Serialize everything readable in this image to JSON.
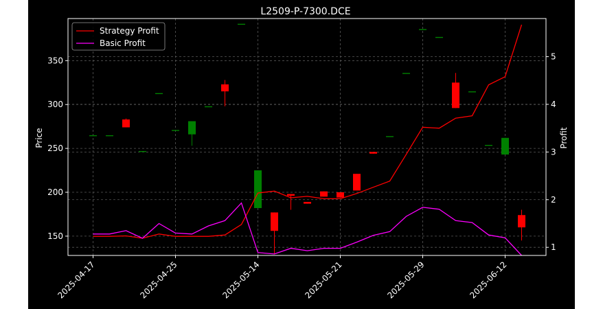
{
  "chart_data": {
    "type": "candlestick+line",
    "title": "L2509-P-7300.DCE",
    "xlabel": "",
    "ylabel_left": "Price",
    "ylabel_right": "Profit",
    "ylim_left": [
      128,
      398
    ],
    "ylim_right": [
      0.83,
      5.8
    ],
    "yticks_left": [
      150,
      200,
      250,
      300,
      350
    ],
    "yticks_right": [
      1,
      2,
      3,
      4,
      5
    ],
    "grid": true,
    "legend_position": "top-left",
    "x_tick_labels": [
      {
        "index": 0,
        "label": "2025-04-17"
      },
      {
        "index": 5,
        "label": "2025-04-25"
      },
      {
        "index": 10,
        "label": "2025-05-14"
      },
      {
        "index": 15,
        "label": "2025-05-21"
      },
      {
        "index": 20,
        "label": "2025-05-29"
      },
      {
        "index": 25,
        "label": "2025-06-12"
      }
    ],
    "candles": [
      {
        "i": 0,
        "open": 265,
        "close": 265,
        "high": 265,
        "low": 265
      },
      {
        "i": 1,
        "open": 265,
        "close": 265,
        "high": 265,
        "low": 265
      },
      {
        "i": 2,
        "open": 283,
        "close": 274,
        "high": 284,
        "low": 274
      },
      {
        "i": 3,
        "open": 247,
        "close": 247,
        "high": 247,
        "low": 247
      },
      {
        "i": 4,
        "open": 313,
        "close": 313,
        "high": 313,
        "low": 313
      },
      {
        "i": 5,
        "open": 271,
        "close": 271,
        "high": 271,
        "low": 271
      },
      {
        "i": 6,
        "open": 266,
        "close": 281,
        "high": 281,
        "low": 253
      },
      {
        "i": 7,
        "open": 298,
        "close": 298,
        "high": 298,
        "low": 298
      },
      {
        "i": 8,
        "open": 323,
        "close": 315,
        "high": 328,
        "low": 298
      },
      {
        "i": 9,
        "open": 392,
        "close": 392,
        "high": 392,
        "low": 392
      },
      {
        "i": 10,
        "open": 182,
        "close": 225,
        "high": 225,
        "low": 182
      },
      {
        "i": 11,
        "open": 177,
        "close": 156,
        "high": 177,
        "low": 130
      },
      {
        "i": 12,
        "open": 198,
        "close": 196,
        "high": 198,
        "low": 180
      },
      {
        "i": 13,
        "open": 189,
        "close": 187,
        "high": 189,
        "low": 187
      },
      {
        "i": 14,
        "open": 201,
        "close": 195,
        "high": 201,
        "low": 195
      },
      {
        "i": 15,
        "open": 200,
        "close": 194,
        "high": 200,
        "low": 194
      },
      {
        "i": 16,
        "open": 221,
        "close": 202,
        "high": 221,
        "low": 202
      },
      {
        "i": 17,
        "open": 246,
        "close": 244,
        "high": 246,
        "low": 244
      },
      {
        "i": 18,
        "open": 264,
        "close": 264,
        "high": 264,
        "low": 264
      },
      {
        "i": 19,
        "open": 336,
        "close": 336,
        "high": 336,
        "low": 336
      },
      {
        "i": 20,
        "open": 386,
        "close": 386,
        "high": 386,
        "low": 386
      },
      {
        "i": 21,
        "open": 377,
        "close": 377,
        "high": 377,
        "low": 377
      },
      {
        "i": 22,
        "open": 325,
        "close": 296,
        "high": 336,
        "low": 296
      },
      {
        "i": 23,
        "open": 315,
        "close": 315,
        "high": 315,
        "low": 315
      },
      {
        "i": 24,
        "open": 254,
        "close": 254,
        "high": 254,
        "low": 254
      },
      {
        "i": 25,
        "open": 243,
        "close": 262,
        "high": 262,
        "low": 243
      },
      {
        "i": 26,
        "open": 174,
        "close": 160,
        "high": 180,
        "low": 145
      }
    ],
    "colors": {
      "up": "#008000",
      "down": "#ff0000",
      "strategy": "#ff0000",
      "basic": "#ff00ff",
      "background": "#000000",
      "text": "#ffffff",
      "grid": "#5a5a5a"
    },
    "series": [
      {
        "name": "Strategy Profit",
        "axis": "right",
        "color": "#ff0000",
        "values": [
          1.23,
          1.23,
          1.24,
          1.19,
          1.28,
          1.23,
          1.23,
          1.23,
          1.26,
          1.48,
          2.14,
          2.18,
          2.04,
          2.07,
          2.02,
          2.02,
          2.13,
          2.26,
          2.39,
          2.95,
          3.52,
          3.5,
          3.71,
          3.76,
          4.41,
          4.58,
          5.67
        ]
      },
      {
        "name": "Basic Profit",
        "axis": "right",
        "color": "#ff00ff",
        "values": [
          1.28,
          1.28,
          1.35,
          1.19,
          1.5,
          1.3,
          1.28,
          1.45,
          1.56,
          1.93,
          0.89,
          0.86,
          0.98,
          0.93,
          0.98,
          0.98,
          1.11,
          1.25,
          1.33,
          1.65,
          1.84,
          1.8,
          1.56,
          1.52,
          1.26,
          1.2,
          0.83
        ]
      }
    ]
  }
}
